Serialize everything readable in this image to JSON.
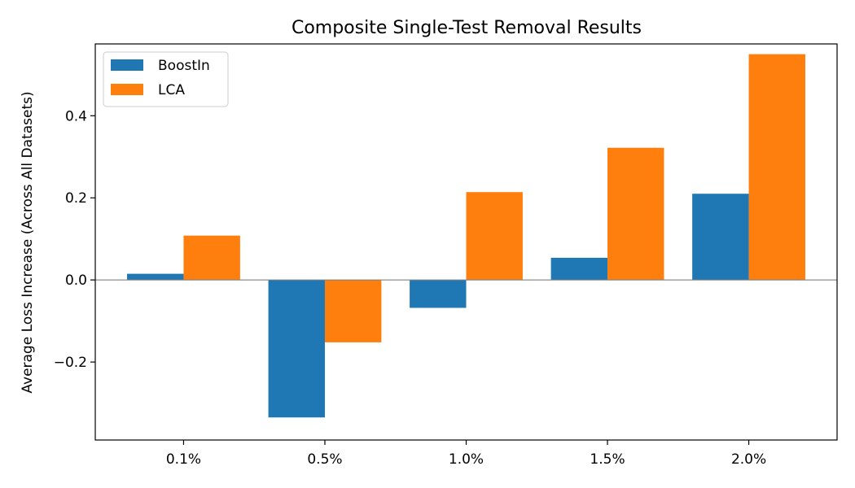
{
  "chart_data": {
    "type": "bar",
    "title": "Composite Single-Test Removal Results",
    "xlabel": "",
    "ylabel": "Average Loss Increase (Across All Datasets)",
    "categories": [
      "0.1%",
      "0.5%",
      "1.0%",
      "1.5%",
      "2.0%"
    ],
    "series": [
      {
        "name": "BoostIn",
        "color": "#1f77b4",
        "values": [
          0.015,
          -0.335,
          -0.068,
          0.054,
          0.21
        ]
      },
      {
        "name": "LCA",
        "color": "#ff7f0e",
        "values": [
          0.108,
          -0.152,
          0.214,
          0.322,
          0.55
        ]
      }
    ],
    "ylim": [
      -0.39,
      0.575
    ],
    "yticks": [
      -0.2,
      0.0,
      0.2,
      0.4
    ],
    "ytick_labels": [
      "−0.2",
      "0.0",
      "0.2",
      "0.4"
    ],
    "zero_line": true,
    "grid": false,
    "legend_position": "top-left"
  }
}
